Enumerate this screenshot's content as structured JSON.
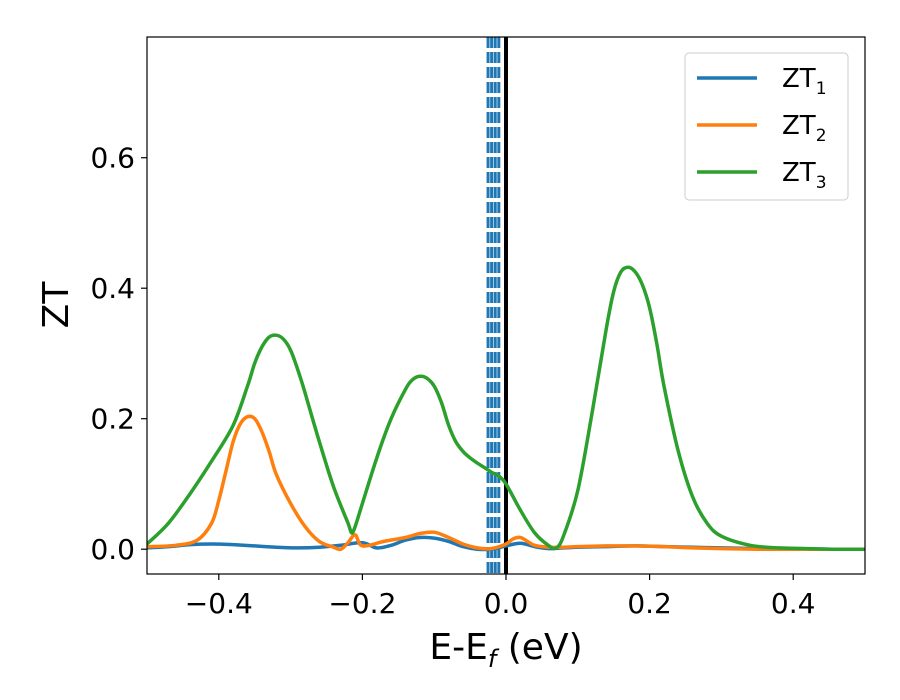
{
  "chart_data": {
    "type": "line",
    "xlabel_main": "E-E",
    "xlabel_sub": "f",
    "xlabel_unit": " (eV)",
    "ylabel": "ZT",
    "xlim": [
      -0.5,
      0.5
    ],
    "ylim": [
      -0.038,
      0.785
    ],
    "x_ticks": [
      -0.4,
      -0.2,
      0.0,
      0.2,
      0.4
    ],
    "x_tick_labels": [
      "−0.4",
      "−0.2",
      "0.0",
      "0.2",
      "0.4"
    ],
    "y_ticks": [
      0.0,
      0.2,
      0.4,
      0.6
    ],
    "y_tick_labels": [
      "0.0",
      "0.2",
      "0.4",
      "0.6"
    ],
    "grid": false,
    "legend_position": "top-right",
    "vertical_lines": [
      {
        "x": 0.0,
        "style": "solid",
        "color": "#000000"
      },
      {
        "x": -0.025,
        "style": "dashed",
        "color": "#1f77b4"
      },
      {
        "x": -0.02,
        "style": "dashed",
        "color": "#1f77b4"
      },
      {
        "x": -0.015,
        "style": "dashed",
        "color": "#1f77b4"
      },
      {
        "x": -0.01,
        "style": "dashed",
        "color": "#1f77b4"
      }
    ],
    "series": [
      {
        "name": "ZT",
        "subscript": "1",
        "color": "#1f77b4",
        "x": [
          -0.5,
          -0.47,
          -0.44,
          -0.41,
          -0.38,
          -0.35,
          -0.32,
          -0.29,
          -0.26,
          -0.23,
          -0.2,
          -0.18,
          -0.16,
          -0.14,
          -0.12,
          -0.1,
          -0.08,
          -0.06,
          -0.04,
          -0.02,
          0.0,
          0.02,
          0.04,
          0.06,
          0.08,
          0.1,
          0.14,
          0.18,
          0.22,
          0.26,
          0.3,
          0.35,
          0.4,
          0.45,
          0.5
        ],
        "y": [
          0.002,
          0.004,
          0.007,
          0.008,
          0.007,
          0.005,
          0.003,
          0.002,
          0.003,
          0.006,
          0.01,
          0.002,
          0.006,
          0.014,
          0.018,
          0.017,
          0.012,
          0.004,
          0.0,
          0.0,
          0.005,
          0.009,
          0.004,
          0.001,
          0.002,
          0.003,
          0.004,
          0.005,
          0.004,
          0.003,
          0.002,
          0.001,
          0.001,
          0.0,
          0.0
        ]
      },
      {
        "name": "ZT",
        "subscript": "2",
        "color": "#ff7f0e",
        "x": [
          -0.5,
          -0.46,
          -0.43,
          -0.41,
          -0.4,
          -0.39,
          -0.38,
          -0.37,
          -0.36,
          -0.35,
          -0.34,
          -0.33,
          -0.32,
          -0.3,
          -0.28,
          -0.26,
          -0.24,
          -0.23,
          -0.22,
          -0.21,
          -0.2,
          -0.17,
          -0.14,
          -0.12,
          -0.1,
          -0.08,
          -0.06,
          -0.04,
          -0.02,
          0.0,
          0.01,
          0.02,
          0.03,
          0.04,
          0.06,
          0.08,
          0.1,
          0.14,
          0.18,
          0.22,
          0.26,
          0.3,
          0.35,
          0.4,
          0.45,
          0.5
        ],
        "y": [
          0.004,
          0.006,
          0.014,
          0.04,
          0.075,
          0.12,
          0.165,
          0.192,
          0.203,
          0.2,
          0.18,
          0.15,
          0.115,
          0.07,
          0.035,
          0.012,
          0.003,
          0.0,
          0.01,
          0.022,
          0.005,
          0.012,
          0.018,
          0.024,
          0.026,
          0.018,
          0.008,
          0.002,
          0.001,
          0.008,
          0.016,
          0.018,
          0.012,
          0.006,
          0.003,
          0.003,
          0.004,
          0.005,
          0.005,
          0.004,
          0.002,
          0.001,
          0.0,
          0.0,
          0.0,
          0.0
        ]
      },
      {
        "name": "ZT",
        "subscript": "3",
        "color": "#2ca02c",
        "x": [
          -0.5,
          -0.47,
          -0.44,
          -0.41,
          -0.38,
          -0.36,
          -0.35,
          -0.34,
          -0.33,
          -0.32,
          -0.31,
          -0.3,
          -0.29,
          -0.28,
          -0.26,
          -0.24,
          -0.22,
          -0.215,
          -0.21,
          -0.2,
          -0.18,
          -0.16,
          -0.14,
          -0.13,
          -0.12,
          -0.11,
          -0.1,
          -0.09,
          -0.08,
          -0.07,
          -0.06,
          -0.05,
          -0.04,
          -0.03,
          -0.02,
          -0.01,
          0.0,
          0.02,
          0.04,
          0.06,
          0.07,
          0.08,
          0.1,
          0.12,
          0.14,
          0.15,
          0.16,
          0.17,
          0.18,
          0.19,
          0.2,
          0.21,
          0.22,
          0.24,
          0.26,
          0.28,
          0.3,
          0.34,
          0.38,
          0.42,
          0.46,
          0.5
        ],
        "y": [
          0.008,
          0.04,
          0.085,
          0.135,
          0.19,
          0.25,
          0.285,
          0.31,
          0.325,
          0.328,
          0.322,
          0.305,
          0.275,
          0.24,
          0.165,
          0.095,
          0.04,
          0.025,
          0.035,
          0.07,
          0.14,
          0.2,
          0.245,
          0.26,
          0.265,
          0.262,
          0.25,
          0.225,
          0.19,
          0.165,
          0.15,
          0.14,
          0.132,
          0.125,
          0.118,
          0.112,
          0.1,
          0.06,
          0.025,
          0.005,
          0.002,
          0.02,
          0.09,
          0.21,
          0.34,
          0.395,
          0.425,
          0.432,
          0.425,
          0.405,
          0.37,
          0.315,
          0.25,
          0.15,
          0.08,
          0.04,
          0.02,
          0.006,
          0.002,
          0.001,
          0.0,
          0.0
        ]
      }
    ]
  }
}
